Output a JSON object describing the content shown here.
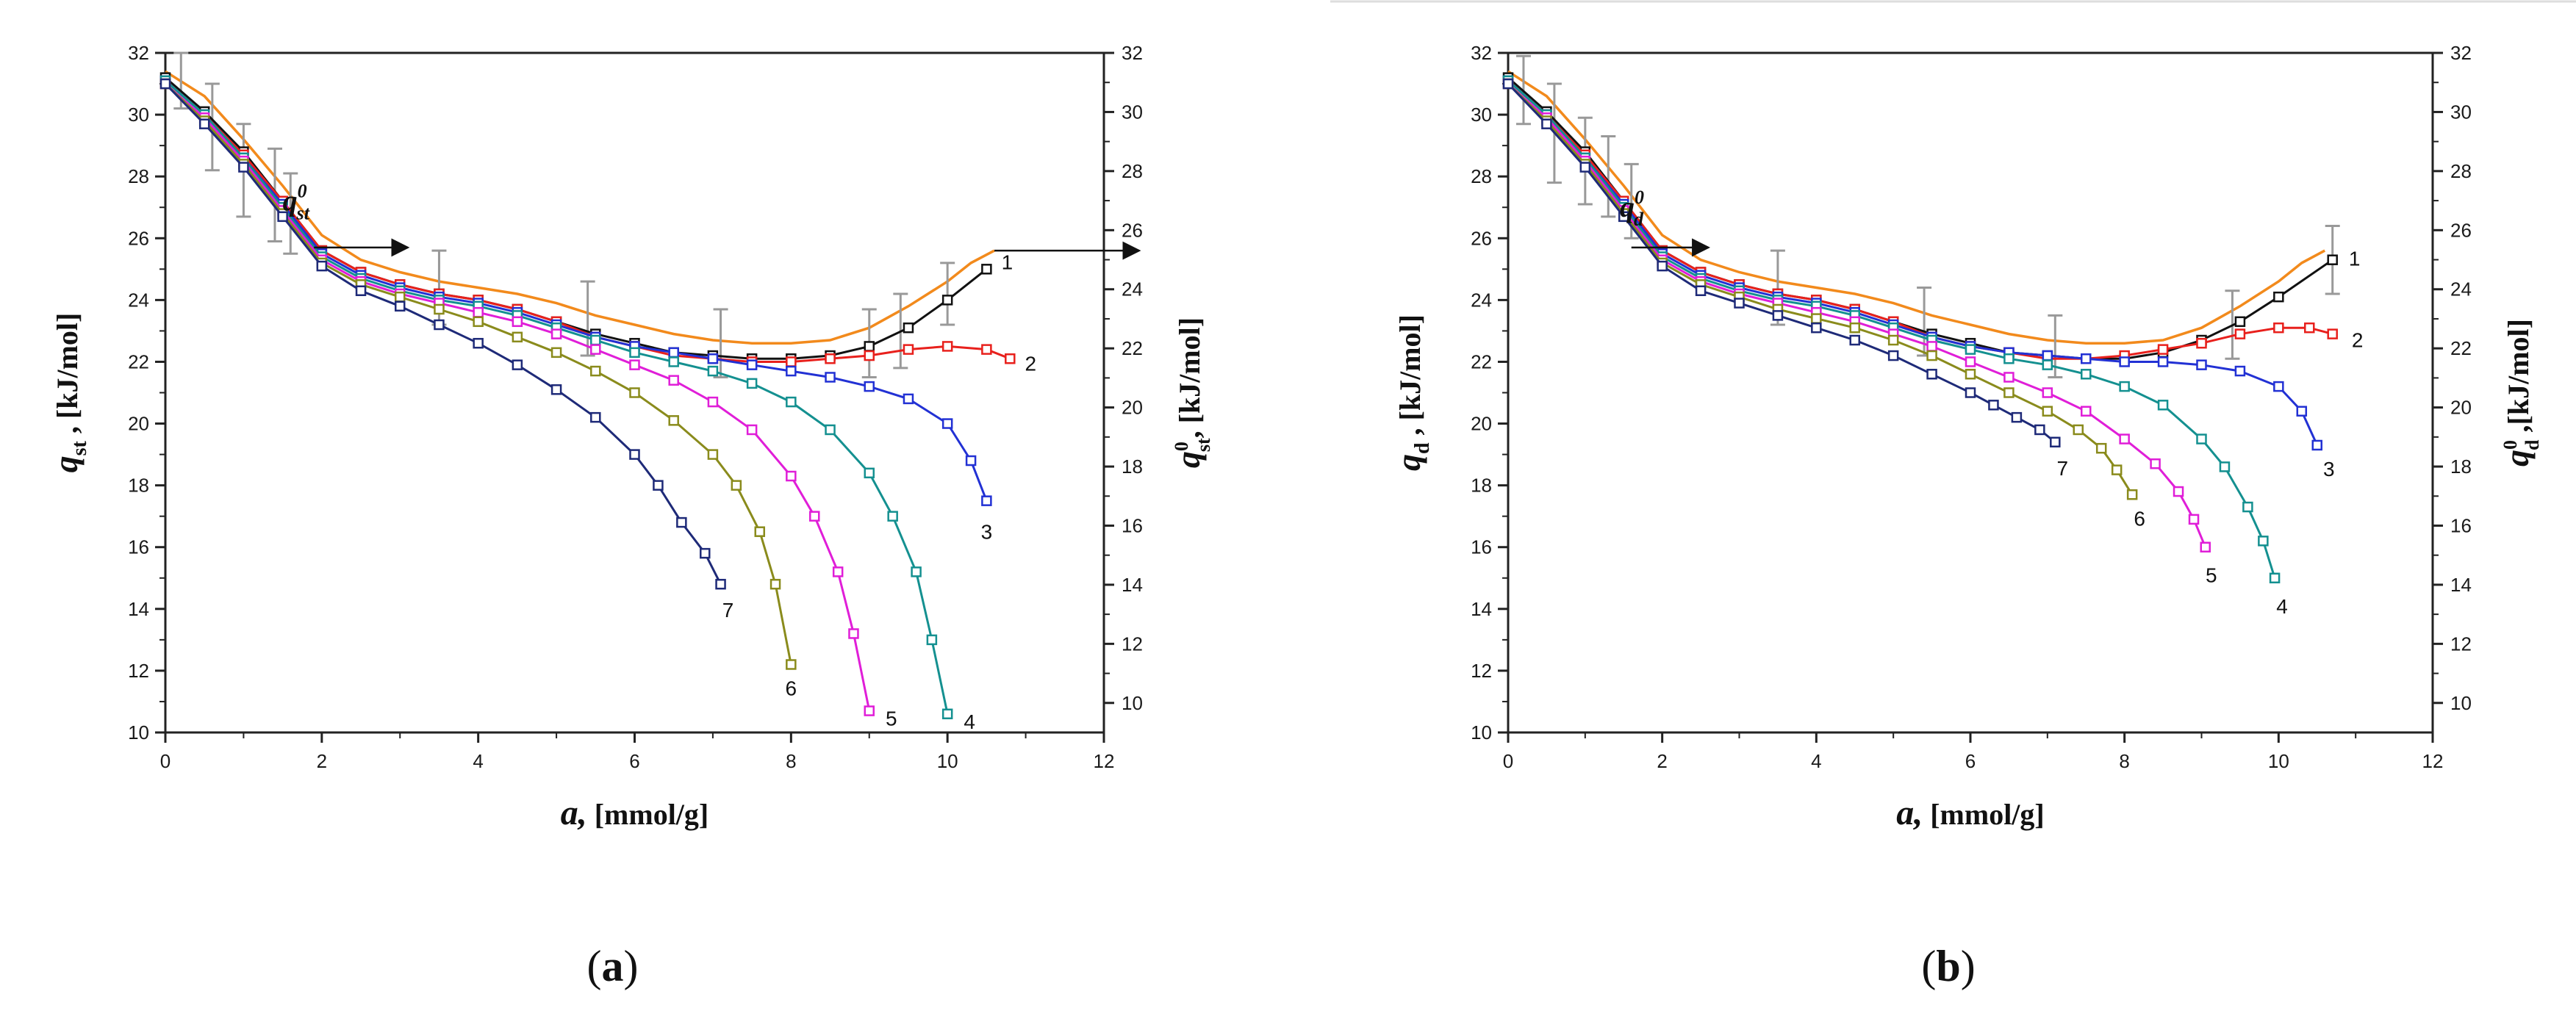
{
  "chart_data": [
    {
      "type": "line",
      "panel": "a",
      "caption": "a",
      "xlabel": "a, [mmol/g]",
      "ylabel": "qst , [kJ/mol]",
      "ylabel_right": "q0st, [kJ/mol]",
      "xlim": [
        0,
        12
      ],
      "ylim": [
        10,
        32
      ],
      "ylim_right": [
        9,
        32
      ],
      "x_ticks": [
        0,
        2,
        4,
        6,
        8,
        10,
        12
      ],
      "y_ticks": [
        10,
        12,
        14,
        16,
        18,
        20,
        22,
        24,
        26,
        28,
        30,
        32
      ],
      "y_ticks_right": [
        10,
        12,
        14,
        16,
        18,
        20,
        22,
        24,
        26,
        28,
        30,
        32
      ],
      "annotation": "q0st",
      "series": [
        {
          "name": "q0st",
          "label": "",
          "color": "#f28a1c",
          "markers": false,
          "x": [
            0,
            0.5,
            1,
            1.5,
            2,
            2.5,
            3,
            3.5,
            4,
            4.5,
            5,
            5.5,
            6,
            6.5,
            7,
            7.5,
            8,
            8.5,
            9,
            9.5,
            10,
            10.3,
            10.6
          ],
          "y": [
            31.4,
            30.6,
            29.2,
            27.7,
            26.1,
            25.3,
            24.9,
            24.6,
            24.4,
            24.2,
            23.9,
            23.5,
            23.2,
            22.9,
            22.7,
            22.6,
            22.6,
            22.7,
            23.1,
            23.8,
            24.6,
            25.2,
            25.6
          ],
          "error_x": [
            0.2,
            0.6,
            1.0,
            1.4,
            1.6,
            3.5,
            5.4,
            7.1,
            9.0,
            9.4,
            10.0
          ],
          "error_y": [
            31.1,
            29.6,
            28.2,
            27.4,
            26.8,
            24.4,
            23.4,
            22.6,
            22.6,
            23.0,
            24.2
          ],
          "error_half": [
            0.9,
            1.4,
            1.5,
            1.5,
            1.3,
            1.2,
            1.2,
            1.1,
            1.1,
            1.2,
            1.0
          ]
        },
        {
          "name": "1",
          "label": "1",
          "color": "#111111",
          "markers": true,
          "x": [
            0,
            0.5,
            1,
            1.5,
            2,
            2.5,
            3,
            3.5,
            4,
            4.5,
            5,
            5.5,
            6,
            6.5,
            7,
            7.5,
            8,
            8.5,
            9,
            9.5,
            10,
            10.5
          ],
          "y": [
            31.2,
            30.1,
            28.8,
            27.2,
            25.6,
            24.9,
            24.5,
            24.2,
            24.0,
            23.7,
            23.3,
            22.9,
            22.6,
            22.3,
            22.2,
            22.1,
            22.1,
            22.2,
            22.5,
            23.1,
            24.0,
            25.0
          ]
        },
        {
          "name": "2",
          "label": "2",
          "color": "#e8201c",
          "markers": true,
          "x": [
            0,
            0.5,
            1,
            1.5,
            2,
            2.5,
            3,
            3.5,
            4,
            4.5,
            5,
            5.5,
            6,
            6.5,
            7,
            7.5,
            8,
            8.5,
            9,
            9.5,
            10,
            10.5,
            10.8
          ],
          "y": [
            31.1,
            30.0,
            28.7,
            27.2,
            25.6,
            24.9,
            24.5,
            24.2,
            24.0,
            23.7,
            23.3,
            22.8,
            22.5,
            22.2,
            22.1,
            22.0,
            22.0,
            22.1,
            22.2,
            22.4,
            22.5,
            22.4,
            22.1
          ]
        },
        {
          "name": "3",
          "label": "3",
          "color": "#2231d4",
          "markers": true,
          "x": [
            0,
            0.5,
            1,
            1.5,
            2,
            2.5,
            3,
            3.5,
            4,
            4.5,
            5,
            5.5,
            6,
            6.5,
            7,
            7.5,
            8,
            8.5,
            9,
            9.5,
            10,
            10.3,
            10.5
          ],
          "y": [
            31.1,
            30.0,
            28.6,
            27.1,
            25.5,
            24.8,
            24.4,
            24.1,
            23.9,
            23.6,
            23.2,
            22.8,
            22.5,
            22.3,
            22.1,
            21.9,
            21.7,
            21.5,
            21.2,
            20.8,
            20.0,
            18.8,
            17.5
          ]
        },
        {
          "name": "4",
          "label": "4",
          "color": "#149090",
          "markers": true,
          "x": [
            0,
            0.5,
            1,
            1.5,
            2,
            2.5,
            3,
            3.5,
            4,
            4.5,
            5,
            5.5,
            6,
            6.5,
            7,
            7.5,
            8,
            8.5,
            9,
            9.3,
            9.6,
            9.8,
            10.0
          ],
          "y": [
            31.1,
            30.0,
            28.6,
            27.0,
            25.4,
            24.7,
            24.3,
            24.0,
            23.8,
            23.5,
            23.1,
            22.7,
            22.3,
            22.0,
            21.7,
            21.3,
            20.7,
            19.8,
            18.4,
            17.0,
            15.2,
            13.0,
            10.6
          ]
        },
        {
          "name": "5",
          "label": "5",
          "color": "#e01ed8",
          "markers": true,
          "x": [
            0,
            0.5,
            1,
            1.5,
            2,
            2.5,
            3,
            3.5,
            4,
            4.5,
            5,
            5.5,
            6,
            6.5,
            7,
            7.5,
            8,
            8.3,
            8.6,
            8.8,
            9.0
          ],
          "y": [
            31.0,
            29.9,
            28.5,
            26.9,
            25.3,
            24.6,
            24.2,
            23.9,
            23.6,
            23.3,
            22.9,
            22.4,
            21.9,
            21.4,
            20.7,
            19.8,
            18.3,
            17.0,
            15.2,
            13.2,
            10.7
          ]
        },
        {
          "name": "6",
          "label": "6",
          "color": "#8a8b1c",
          "markers": true,
          "x": [
            0,
            0.5,
            1,
            1.5,
            2,
            2.5,
            3,
            3.5,
            4,
            4.5,
            5,
            5.5,
            6,
            6.5,
            7,
            7.3,
            7.6,
            7.8,
            8.0
          ],
          "y": [
            31.0,
            29.8,
            28.4,
            26.8,
            25.2,
            24.5,
            24.1,
            23.7,
            23.3,
            22.8,
            22.3,
            21.7,
            21.0,
            20.1,
            19.0,
            18.0,
            16.5,
            14.8,
            12.2
          ]
        },
        {
          "name": "7",
          "label": "7",
          "color": "#1e2a78",
          "markers": true,
          "x": [
            0,
            0.5,
            1,
            1.5,
            2,
            2.5,
            3,
            3.5,
            4,
            4.5,
            5,
            5.5,
            6,
            6.3,
            6.6,
            6.9,
            7.1
          ],
          "y": [
            31.0,
            29.7,
            28.3,
            26.7,
            25.1,
            24.3,
            23.8,
            23.2,
            22.6,
            21.9,
            21.1,
            20.2,
            19.0,
            18.0,
            16.8,
            15.8,
            14.8
          ]
        }
      ]
    },
    {
      "type": "line",
      "panel": "b",
      "caption": "b",
      "xlabel": "a, [mmol/g]",
      "ylabel": "qd , [kJ/mol]",
      "ylabel_right": "q0d ,[kJ/mol]",
      "xlim": [
        0,
        12
      ],
      "ylim": [
        10,
        32
      ],
      "ylim_right": [
        9,
        32
      ],
      "x_ticks": [
        0,
        2,
        4,
        6,
        8,
        10,
        12
      ],
      "y_ticks": [
        10,
        12,
        14,
        16,
        18,
        20,
        22,
        24,
        26,
        28,
        30,
        32
      ],
      "y_ticks_right": [
        10,
        12,
        14,
        16,
        18,
        20,
        22,
        24,
        26,
        28,
        30,
        32
      ],
      "annotation": "q0d",
      "series": [
        {
          "name": "q0d",
          "label": "",
          "color": "#f28a1c",
          "markers": false,
          "x": [
            0,
            0.5,
            1,
            1.5,
            2,
            2.5,
            3,
            3.5,
            4,
            4.5,
            5,
            5.5,
            6,
            6.5,
            7,
            7.5,
            8,
            8.5,
            9,
            9.5,
            10,
            10.3,
            10.6
          ],
          "y": [
            31.4,
            30.6,
            29.2,
            27.7,
            26.1,
            25.3,
            24.9,
            24.6,
            24.4,
            24.2,
            23.9,
            23.5,
            23.2,
            22.9,
            22.7,
            22.6,
            22.6,
            22.7,
            23.1,
            23.8,
            24.6,
            25.2,
            25.6
          ],
          "error_x": [
            0.2,
            0.6,
            1.0,
            1.3,
            1.6,
            3.5,
            5.4,
            7.1,
            9.4,
            10.7
          ],
          "error_y": [
            30.8,
            29.4,
            28.5,
            28.0,
            27.2,
            24.4,
            23.3,
            22.5,
            23.2,
            25.3
          ],
          "error_half": [
            1.1,
            1.6,
            1.4,
            1.3,
            1.2,
            1.2,
            1.1,
            1.0,
            1.1,
            1.1
          ]
        },
        {
          "name": "1",
          "label": "1",
          "color": "#111111",
          "markers": true,
          "x": [
            0,
            0.5,
            1,
            1.5,
            2,
            2.5,
            3,
            3.5,
            4,
            4.5,
            5,
            5.5,
            6,
            6.5,
            7,
            7.5,
            8,
            8.5,
            9,
            9.5,
            10,
            10.7
          ],
          "y": [
            31.2,
            30.1,
            28.8,
            27.2,
            25.6,
            24.9,
            24.5,
            24.2,
            24.0,
            23.7,
            23.3,
            22.9,
            22.6,
            22.3,
            22.2,
            22.1,
            22.1,
            22.3,
            22.7,
            23.3,
            24.1,
            25.3
          ]
        },
        {
          "name": "2",
          "label": "2",
          "color": "#e8201c",
          "markers": true,
          "x": [
            0,
            0.5,
            1,
            1.5,
            2,
            2.5,
            3,
            3.5,
            4,
            4.5,
            5,
            5.5,
            6,
            6.5,
            7,
            7.5,
            8,
            8.5,
            9,
            9.5,
            10,
            10.4,
            10.7
          ],
          "y": [
            31.1,
            30.0,
            28.7,
            27.2,
            25.6,
            24.9,
            24.5,
            24.2,
            24.0,
            23.7,
            23.3,
            22.8,
            22.5,
            22.3,
            22.1,
            22.1,
            22.2,
            22.4,
            22.6,
            22.9,
            23.1,
            23.1,
            22.9
          ]
        },
        {
          "name": "3",
          "label": "3",
          "color": "#2231d4",
          "markers": true,
          "x": [
            0,
            0.5,
            1,
            1.5,
            2,
            2.5,
            3,
            3.5,
            4,
            4.5,
            5,
            5.5,
            6,
            6.5,
            7,
            7.5,
            8,
            8.5,
            9,
            9.5,
            10,
            10.3,
            10.5
          ],
          "y": [
            31.1,
            30.0,
            28.6,
            27.1,
            25.5,
            24.8,
            24.4,
            24.1,
            23.9,
            23.6,
            23.2,
            22.8,
            22.5,
            22.3,
            22.2,
            22.1,
            22.0,
            22.0,
            21.9,
            21.7,
            21.2,
            20.4,
            19.3
          ]
        },
        {
          "name": "4",
          "label": "4",
          "color": "#149090",
          "markers": true,
          "x": [
            0,
            0.5,
            1,
            1.5,
            2,
            2.5,
            3,
            3.5,
            4,
            4.5,
            5,
            5.5,
            6,
            6.5,
            7,
            7.5,
            8,
            8.5,
            9,
            9.3,
            9.6,
            9.8,
            9.95
          ],
          "y": [
            31.1,
            30.0,
            28.6,
            27.0,
            25.4,
            24.7,
            24.3,
            24.0,
            23.8,
            23.5,
            23.1,
            22.7,
            22.4,
            22.1,
            21.9,
            21.6,
            21.2,
            20.6,
            19.5,
            18.6,
            17.3,
            16.2,
            15.0
          ]
        },
        {
          "name": "5",
          "label": "5",
          "color": "#e01ed8",
          "markers": true,
          "x": [
            0,
            0.5,
            1,
            1.5,
            2,
            2.5,
            3,
            3.5,
            4,
            4.5,
            5,
            5.5,
            6,
            6.5,
            7,
            7.5,
            8,
            8.4,
            8.7,
            8.9,
            9.05
          ],
          "y": [
            31.0,
            29.9,
            28.5,
            26.9,
            25.3,
            24.6,
            24.2,
            23.9,
            23.6,
            23.3,
            22.9,
            22.5,
            22.0,
            21.5,
            21.0,
            20.4,
            19.5,
            18.7,
            17.8,
            16.9,
            16.0
          ]
        },
        {
          "name": "6",
          "label": "6",
          "color": "#8a8b1c",
          "markers": true,
          "x": [
            0,
            0.5,
            1,
            1.5,
            2,
            2.5,
            3,
            3.5,
            4,
            4.5,
            5,
            5.5,
            6,
            6.5,
            7,
            7.4,
            7.7,
            7.9,
            8.1
          ],
          "y": [
            31.0,
            29.8,
            28.4,
            26.8,
            25.2,
            24.5,
            24.1,
            23.7,
            23.4,
            23.1,
            22.7,
            22.2,
            21.6,
            21.0,
            20.4,
            19.8,
            19.2,
            18.5,
            17.7
          ]
        },
        {
          "name": "7",
          "label": "7",
          "color": "#1e2a78",
          "markers": true,
          "x": [
            0,
            0.5,
            1,
            1.5,
            2,
            2.5,
            3,
            3.5,
            4,
            4.5,
            5,
            5.5,
            6,
            6.3,
            6.6,
            6.9,
            7.1
          ],
          "y": [
            31.0,
            29.7,
            28.3,
            26.7,
            25.1,
            24.3,
            23.9,
            23.5,
            23.1,
            22.7,
            22.2,
            21.6,
            21.0,
            20.6,
            20.2,
            19.8,
            19.4
          ]
        }
      ]
    }
  ]
}
